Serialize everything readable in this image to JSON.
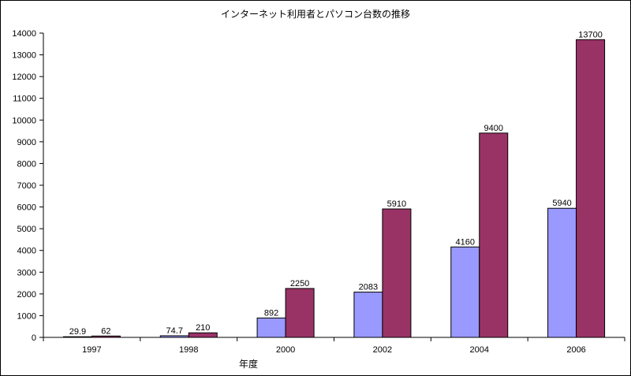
{
  "chart_data": {
    "type": "bar",
    "title": "インターネット利用者とパソコン台数の推移",
    "xlabel": "年度",
    "ylabel": "",
    "categories": [
      "1997",
      "1998",
      "2000",
      "2002",
      "2004",
      "2006"
    ],
    "series": [
      {
        "values": [
          29.9,
          74.7,
          892,
          2083,
          4160,
          5940
        ],
        "labels": [
          "29.9",
          "74.7",
          "892",
          "2083",
          "4160",
          "5940"
        ],
        "color": "#9999FF"
      },
      {
        "values": [
          62,
          210,
          2250,
          5910,
          9400,
          13700
        ],
        "labels": [
          "62",
          "210",
          "2250",
          "5910",
          "9400",
          "13700"
        ],
        "color": "#993366"
      }
    ],
    "ylim": [
      0,
      14000
    ],
    "yticks": [
      0,
      1000,
      2000,
      3000,
      4000,
      5000,
      6000,
      7000,
      8000,
      9000,
      10000,
      11000,
      12000,
      13000,
      14000
    ],
    "grid": false,
    "legend": "none"
  }
}
